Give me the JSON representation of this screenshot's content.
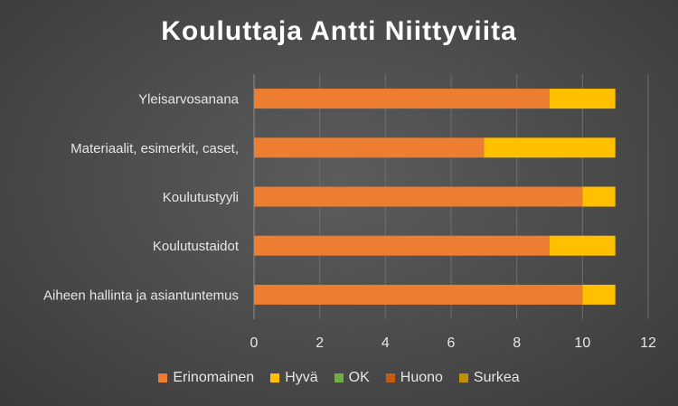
{
  "chart_data": {
    "type": "bar",
    "orientation": "horizontal",
    "stacked": true,
    "title": "Kouluttaja Antti Niittyviita",
    "categories": [
      "Yleisarvosanana",
      "Materiaalit, esimerkit, caset,",
      "Koulutustyyli",
      "Koulutustaidot",
      "Aiheen hallinta ja asiantuntemus"
    ],
    "series": [
      {
        "name": "Erinomainen",
        "color": "#ED7D31",
        "values": [
          9,
          7,
          10,
          9,
          10
        ]
      },
      {
        "name": "Hyvä",
        "color": "#FFC000",
        "values": [
          2,
          4,
          1,
          2,
          1
        ]
      },
      {
        "name": "OK",
        "color": "#70AD47",
        "values": [
          0,
          0,
          0,
          0,
          0
        ]
      },
      {
        "name": "Huono",
        "color": "#C55A11",
        "values": [
          0,
          0,
          0,
          0,
          0
        ]
      },
      {
        "name": "Surkea",
        "color": "#BF9000",
        "values": [
          0,
          0,
          0,
          0,
          0
        ]
      }
    ],
    "xlim": [
      0,
      12
    ],
    "xticks": [
      0,
      2,
      4,
      6,
      8,
      10,
      12
    ],
    "xlabel": "",
    "ylabel": "",
    "grid": true,
    "legend_position": "bottom"
  }
}
